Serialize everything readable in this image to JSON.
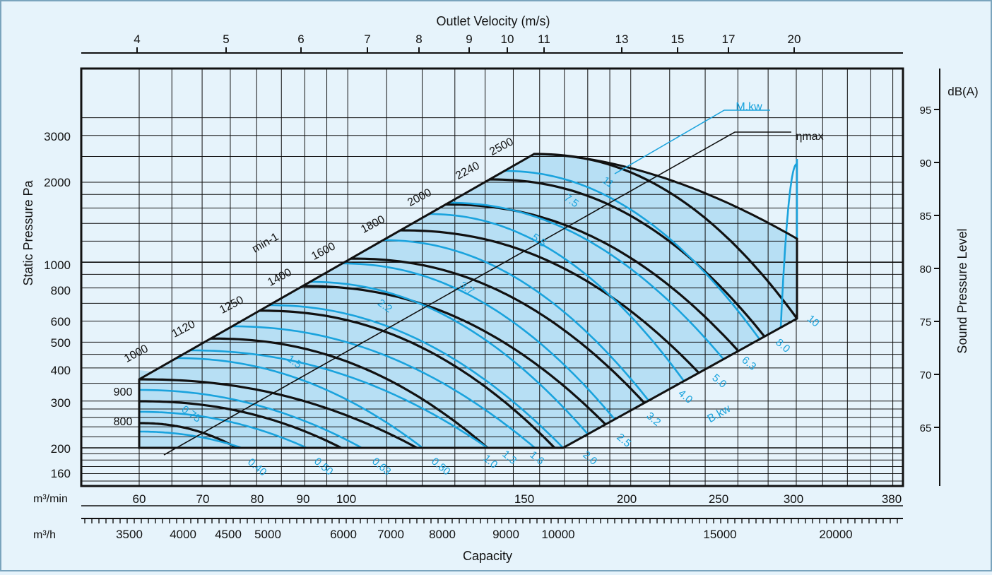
{
  "chart_data": {
    "type": "line",
    "chart_kind": "fan performance curve",
    "xlabel": "Capacity",
    "ylabel": "Static Pressure Pa",
    "y2label": "Sound Pressure Level",
    "y2unit": "dB(A)",
    "top_axis_label": "Outlet Velocity (m/s)",
    "x_scale": "log",
    "y_scale": "log",
    "grid": true,
    "x_unit_min": "m³/min",
    "x_unit_h": "m³/h",
    "x_ticks_min": [
      "60",
      "70",
      "80",
      "90",
      "100",
      "150",
      "200",
      "250",
      "300",
      "380"
    ],
    "x_ticks_h": [
      "3500",
      "4000",
      "4500",
      "5000",
      "6000",
      "7000",
      "8000",
      "9000",
      "10000",
      "15000",
      "20000"
    ],
    "y_ticks": [
      "160",
      "200",
      "300",
      "400",
      "500",
      "600",
      "800",
      "1000",
      "2000",
      "3000"
    ],
    "y2_ticks": [
      "65",
      "70",
      "75",
      "80",
      "85",
      "90",
      "95"
    ],
    "velocity_ticks": [
      "4",
      "5",
      "6",
      "7",
      "8",
      "9",
      "10",
      "11",
      "13",
      "15",
      "17",
      "20"
    ],
    "speed_unit": "min-1",
    "speeds": [
      "800",
      "900",
      "1000",
      "1120",
      "1250",
      "1400",
      "1600",
      "1800",
      "2000",
      "2240",
      "2500"
    ],
    "power_lines_kw": [
      "0.40",
      "0.50",
      "0.63",
      "0.80",
      "1.0",
      "1.3",
      "1.6",
      "2.0",
      "2.5",
      "3.2",
      "4.0",
      "5.0",
      "6.3",
      "8.0",
      "10"
    ],
    "motor_kw": [
      "0.75",
      "1.5",
      "2.2",
      "3.7",
      "5.5",
      "7.5",
      "11"
    ],
    "labels": {
      "motor": "M.kw",
      "brake": "B.kw",
      "efficiency": "ηmax"
    },
    "colors": {
      "speed_curve": "#111111",
      "power_curve": "#1aa3dd",
      "band": "#b7dff4",
      "background": "#e6f3fb",
      "grid": "#111111"
    }
  }
}
